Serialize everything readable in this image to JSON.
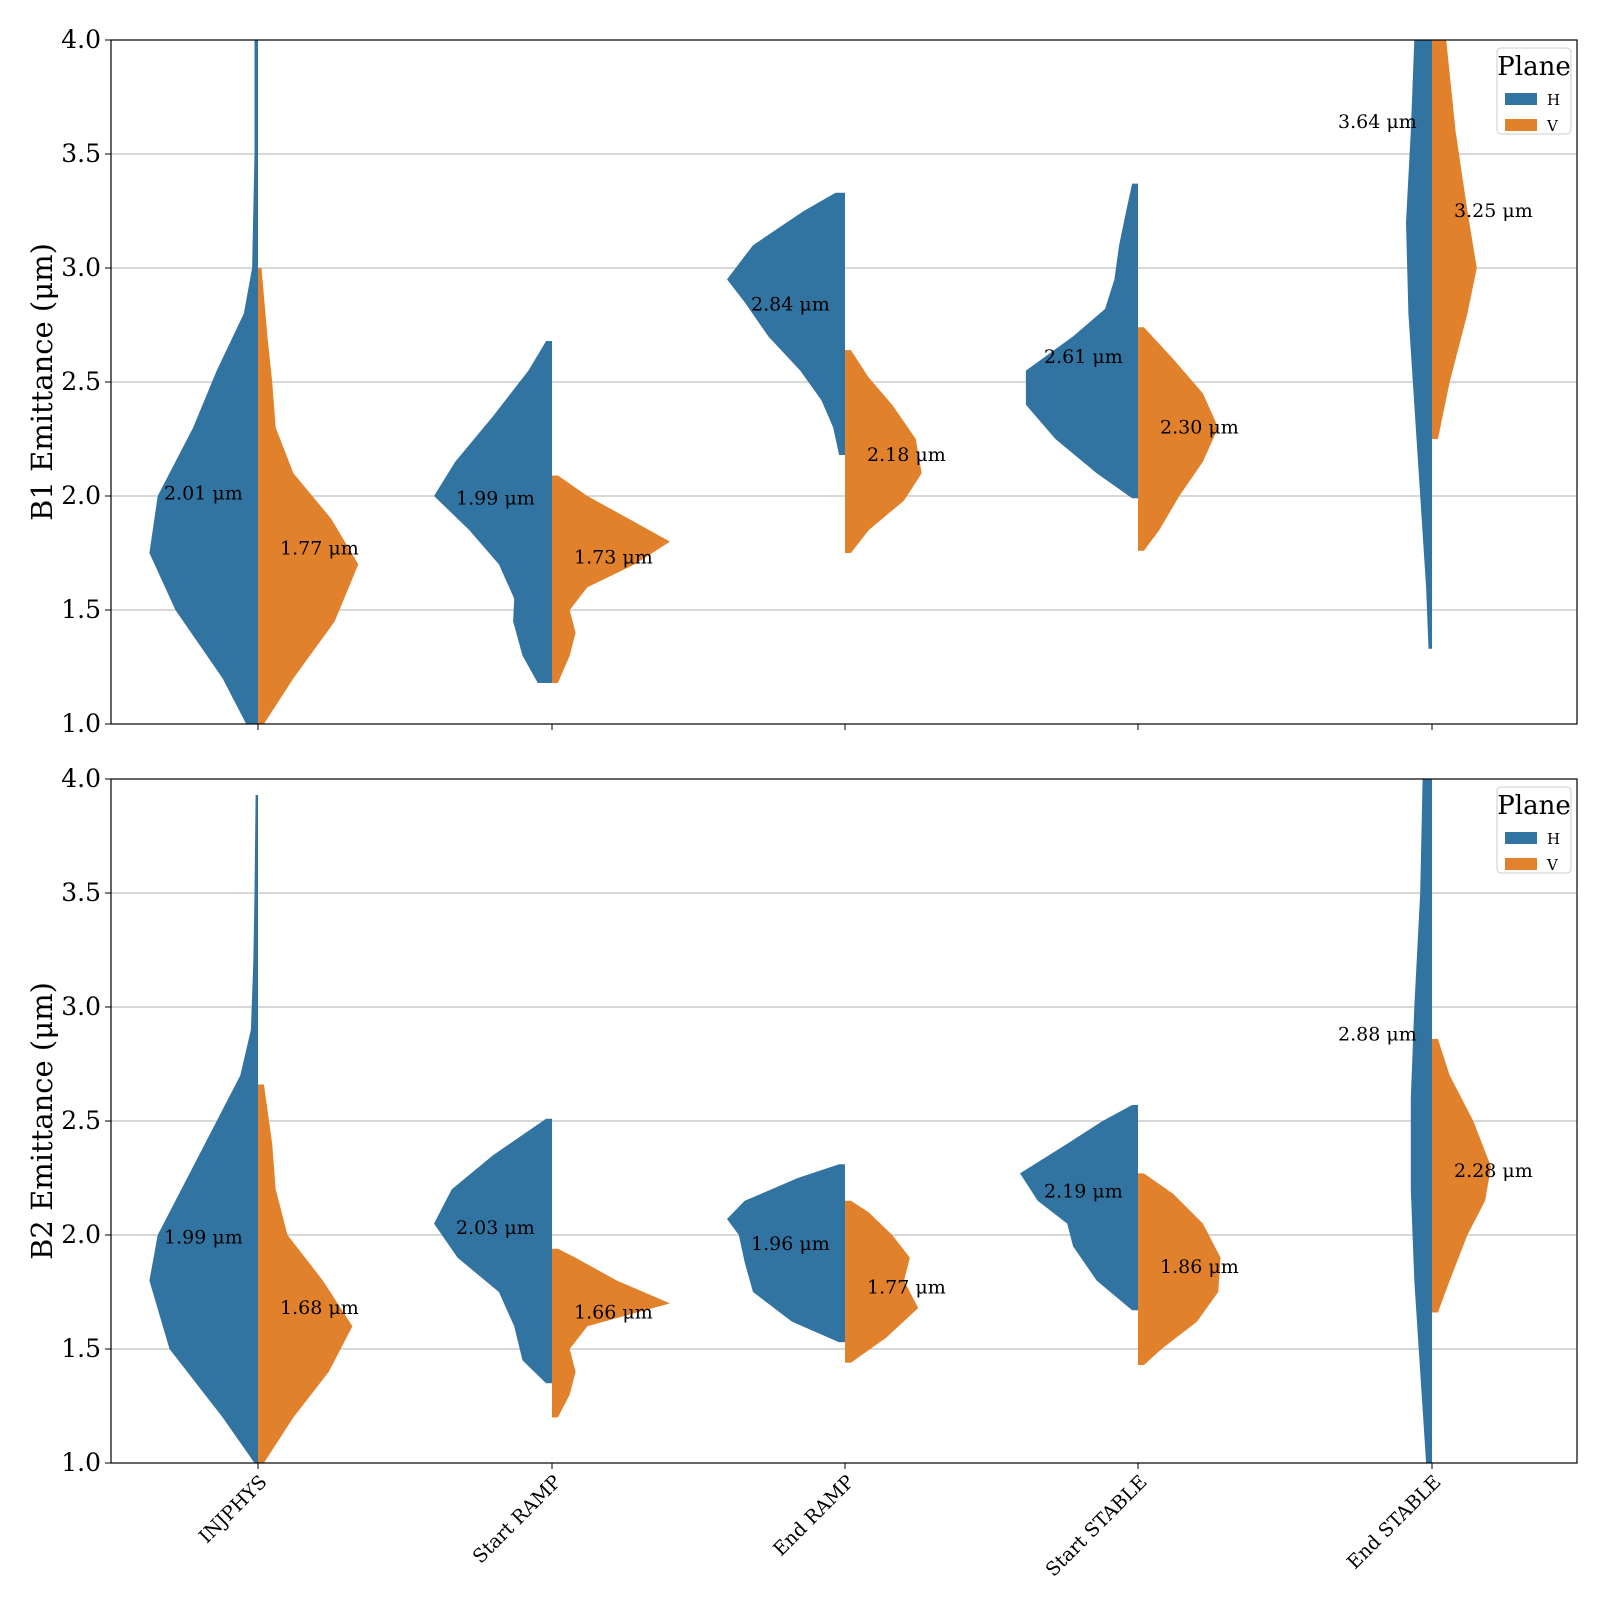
{
  "colors": {
    "H": "#3274a1",
    "V": "#e1812c",
    "grid": "#b0b0b0",
    "axis": "#000000"
  },
  "chart_data": [
    {
      "type": "violin",
      "split": true,
      "ylabel": "B1 Emittance (μm)",
      "ylim": [
        1.0,
        4.0
      ],
      "yticks": [
        "1.0",
        "1.5",
        "2.0",
        "2.5",
        "3.0",
        "3.5",
        "4.0"
      ],
      "grid": true,
      "legend": {
        "title": "Plane",
        "placement": "top-right",
        "entries": [
          "H",
          "V"
        ]
      },
      "categories": [
        "INJPHYS",
        "Start RAMP",
        "End RAMP",
        "Start STABLE",
        "End STABLE"
      ],
      "series": [
        {
          "name": "H",
          "medians": [
            2.01,
            1.99,
            2.84,
            2.61,
            3.64
          ],
          "labels": [
            "2.01 μm",
            "1.99 μm",
            "2.84 μm",
            "2.61 μm",
            "3.64 μm"
          ],
          "label_y": [
            2.01,
            1.99,
            2.84,
            2.61,
            3.64
          ],
          "ranges": [
            [
              1.0,
              4.0
            ],
            [
              1.18,
              2.68
            ],
            [
              2.18,
              3.33
            ],
            [
              1.99,
              3.37
            ],
            [
              1.33,
              4.0
            ]
          ],
          "density_profiles": [
            [
              [
                1.0,
                0.1
              ],
              [
                1.2,
                0.3
              ],
              [
                1.5,
                0.7
              ],
              [
                1.75,
                0.92
              ],
              [
                2.0,
                0.85
              ],
              [
                2.3,
                0.55
              ],
              [
                2.55,
                0.35
              ],
              [
                2.8,
                0.12
              ],
              [
                3.0,
                0.05
              ],
              [
                3.5,
                0.03
              ],
              [
                4.0,
                0.03
              ]
            ],
            [
              [
                1.18,
                0.12
              ],
              [
                1.3,
                0.25
              ],
              [
                1.45,
                0.33
              ],
              [
                1.55,
                0.32
              ],
              [
                1.7,
                0.45
              ],
              [
                1.85,
                0.7
              ],
              [
                2.0,
                1.0
              ],
              [
                2.15,
                0.82
              ],
              [
                2.35,
                0.5
              ],
              [
                2.55,
                0.2
              ],
              [
                2.68,
                0.05
              ]
            ],
            [
              [
                2.18,
                0.05
              ],
              [
                2.3,
                0.1
              ],
              [
                2.42,
                0.2
              ],
              [
                2.55,
                0.38
              ],
              [
                2.7,
                0.65
              ],
              [
                2.85,
                0.85
              ],
              [
                2.95,
                1.0
              ],
              [
                3.1,
                0.78
              ],
              [
                3.25,
                0.35
              ],
              [
                3.33,
                0.08
              ]
            ],
            [
              [
                1.99,
                0.05
              ],
              [
                2.1,
                0.35
              ],
              [
                2.25,
                0.7
              ],
              [
                2.4,
                0.95
              ],
              [
                2.55,
                0.95
              ],
              [
                2.7,
                0.55
              ],
              [
                2.82,
                0.28
              ],
              [
                2.95,
                0.2
              ],
              [
                3.1,
                0.16
              ],
              [
                3.25,
                0.1
              ],
              [
                3.37,
                0.05
              ]
            ],
            [
              [
                1.33,
                0.03
              ],
              [
                1.6,
                0.05
              ],
              [
                2.0,
                0.1
              ],
              [
                2.4,
                0.15
              ],
              [
                2.8,
                0.2
              ],
              [
                3.2,
                0.22
              ],
              [
                3.6,
                0.18
              ],
              [
                4.0,
                0.15
              ]
            ]
          ]
        },
        {
          "name": "V",
          "medians": [
            1.77,
            1.73,
            2.18,
            2.3,
            3.25
          ],
          "labels": [
            "1.77 μm",
            "1.73 μm",
            "2.18 μm",
            "2.30 μm",
            "3.25 μm"
          ],
          "label_y": [
            1.77,
            1.73,
            2.18,
            2.3,
            3.25
          ],
          "ranges": [
            [
              1.0,
              3.02
            ],
            [
              1.18,
              2.09
            ],
            [
              1.75,
              2.64
            ],
            [
              1.76,
              2.74
            ],
            [
              2.25,
              4.0
            ]
          ],
          "density_profiles": [
            [
              [
                1.0,
                0.05
              ],
              [
                1.2,
                0.3
              ],
              [
                1.45,
                0.65
              ],
              [
                1.7,
                0.85
              ],
              [
                1.9,
                0.62
              ],
              [
                2.1,
                0.3
              ],
              [
                2.3,
                0.15
              ],
              [
                2.5,
                0.12
              ],
              [
                2.7,
                0.08
              ],
              [
                3.0,
                0.03
              ]
            ],
            [
              [
                1.18,
                0.05
              ],
              [
                1.3,
                0.15
              ],
              [
                1.4,
                0.2
              ],
              [
                1.5,
                0.15
              ],
              [
                1.6,
                0.3
              ],
              [
                1.7,
                0.7
              ],
              [
                1.8,
                1.0
              ],
              [
                1.9,
                0.65
              ],
              [
                2.0,
                0.3
              ],
              [
                2.09,
                0.05
              ]
            ],
            [
              [
                1.75,
                0.05
              ],
              [
                1.85,
                0.2
              ],
              [
                1.98,
                0.5
              ],
              [
                2.1,
                0.65
              ],
              [
                2.25,
                0.6
              ],
              [
                2.4,
                0.4
              ],
              [
                2.52,
                0.2
              ],
              [
                2.64,
                0.05
              ]
            ],
            [
              [
                1.76,
                0.05
              ],
              [
                1.85,
                0.18
              ],
              [
                2.0,
                0.35
              ],
              [
                2.15,
                0.55
              ],
              [
                2.3,
                0.68
              ],
              [
                2.45,
                0.55
              ],
              [
                2.6,
                0.3
              ],
              [
                2.74,
                0.05
              ]
            ],
            [
              [
                2.25,
                0.05
              ],
              [
                2.5,
                0.15
              ],
              [
                2.8,
                0.3
              ],
              [
                3.0,
                0.38
              ],
              [
                3.25,
                0.3
              ],
              [
                3.6,
                0.2
              ],
              [
                4.0,
                0.12
              ]
            ]
          ]
        }
      ]
    },
    {
      "type": "violin",
      "split": true,
      "ylabel": "B2 Emittance (μm)",
      "ylim": [
        1.0,
        4.0
      ],
      "yticks": [
        "1.0",
        "1.5",
        "2.0",
        "2.5",
        "3.0",
        "3.5",
        "4.0"
      ],
      "grid": true,
      "legend": {
        "title": "Plane",
        "placement": "top-right",
        "entries": [
          "H",
          "V"
        ]
      },
      "categories": [
        "INJPHYS",
        "Start RAMP",
        "End RAMP",
        "Start STABLE",
        "End STABLE"
      ],
      "series": [
        {
          "name": "H",
          "medians": [
            1.99,
            2.03,
            1.96,
            2.19,
            2.88
          ],
          "labels": [
            "1.99 μm",
            "2.03 μm",
            "1.96 μm",
            "2.19 μm",
            "2.88 μm"
          ],
          "label_y": [
            1.99,
            2.03,
            1.96,
            2.19,
            2.88
          ],
          "ranges": [
            [
              1.0,
              3.93
            ],
            [
              1.35,
              2.51
            ],
            [
              1.53,
              2.31
            ],
            [
              1.67,
              2.57
            ],
            [
              1.0,
              4.0
            ]
          ],
          "density_profiles": [
            [
              [
                1.0,
                0.03
              ],
              [
                1.2,
                0.3
              ],
              [
                1.5,
                0.75
              ],
              [
                1.8,
                0.92
              ],
              [
                2.0,
                0.85
              ],
              [
                2.3,
                0.55
              ],
              [
                2.5,
                0.35
              ],
              [
                2.7,
                0.15
              ],
              [
                2.9,
                0.06
              ],
              [
                3.2,
                0.04
              ],
              [
                3.5,
                0.03
              ],
              [
                3.93,
                0.02
              ]
            ],
            [
              [
                1.35,
                0.05
              ],
              [
                1.45,
                0.25
              ],
              [
                1.6,
                0.32
              ],
              [
                1.75,
                0.45
              ],
              [
                1.9,
                0.8
              ],
              [
                2.05,
                1.0
              ],
              [
                2.2,
                0.85
              ],
              [
                2.35,
                0.5
              ],
              [
                2.51,
                0.05
              ]
            ],
            [
              [
                1.53,
                0.05
              ],
              [
                1.62,
                0.45
              ],
              [
                1.75,
                0.78
              ],
              [
                1.88,
                0.85
              ],
              [
                2.0,
                0.9
              ],
              [
                2.07,
                1.0
              ],
              [
                2.15,
                0.85
              ],
              [
                2.25,
                0.4
              ],
              [
                2.31,
                0.05
              ]
            ],
            [
              [
                1.67,
                0.05
              ],
              [
                1.8,
                0.35
              ],
              [
                1.95,
                0.55
              ],
              [
                2.05,
                0.6
              ],
              [
                2.15,
                0.85
              ],
              [
                2.27,
                1.0
              ],
              [
                2.4,
                0.6
              ],
              [
                2.5,
                0.3
              ],
              [
                2.57,
                0.05
              ]
            ],
            [
              [
                1.0,
                0.05
              ],
              [
                1.4,
                0.1
              ],
              [
                1.8,
                0.15
              ],
              [
                2.2,
                0.18
              ],
              [
                2.6,
                0.18
              ],
              [
                3.0,
                0.15
              ],
              [
                3.5,
                0.1
              ],
              [
                4.0,
                0.08
              ]
            ]
          ]
        },
        {
          "name": "V",
          "medians": [
            1.68,
            1.66,
            1.77,
            1.86,
            2.28
          ],
          "labels": [
            "1.68 μm",
            "1.66 μm",
            "1.77 μm",
            "1.86 μm",
            "2.28 μm"
          ],
          "label_y": [
            1.68,
            1.66,
            1.77,
            1.86,
            2.28
          ],
          "ranges": [
            [
              1.0,
              2.66
            ],
            [
              1.2,
              1.94
            ],
            [
              1.44,
              2.15
            ],
            [
              1.43,
              2.27
            ],
            [
              1.66,
              2.86
            ]
          ],
          "density_profiles": [
            [
              [
                1.0,
                0.05
              ],
              [
                1.2,
                0.3
              ],
              [
                1.4,
                0.6
              ],
              [
                1.6,
                0.8
              ],
              [
                1.8,
                0.55
              ],
              [
                2.0,
                0.25
              ],
              [
                2.2,
                0.15
              ],
              [
                2.4,
                0.12
              ],
              [
                2.66,
                0.05
              ]
            ],
            [
              [
                1.2,
                0.05
              ],
              [
                1.3,
                0.15
              ],
              [
                1.4,
                0.2
              ],
              [
                1.5,
                0.15
              ],
              [
                1.6,
                0.3
              ],
              [
                1.7,
                1.0
              ],
              [
                1.8,
                0.55
              ],
              [
                1.9,
                0.2
              ],
              [
                1.94,
                0.05
              ]
            ],
            [
              [
                1.44,
                0.05
              ],
              [
                1.55,
                0.35
              ],
              [
                1.68,
                0.62
              ],
              [
                1.8,
                0.5
              ],
              [
                1.9,
                0.55
              ],
              [
                2.0,
                0.4
              ],
              [
                2.1,
                0.2
              ],
              [
                2.15,
                0.05
              ]
            ],
            [
              [
                1.43,
                0.05
              ],
              [
                1.5,
                0.2
              ],
              [
                1.62,
                0.5
              ],
              [
                1.75,
                0.68
              ],
              [
                1.9,
                0.7
              ],
              [
                2.05,
                0.55
              ],
              [
                2.18,
                0.3
              ],
              [
                2.27,
                0.05
              ]
            ],
            [
              [
                1.66,
                0.05
              ],
              [
                1.8,
                0.15
              ],
              [
                2.0,
                0.3
              ],
              [
                2.15,
                0.45
              ],
              [
                2.3,
                0.5
              ],
              [
                2.5,
                0.35
              ],
              [
                2.7,
                0.15
              ],
              [
                2.86,
                0.05
              ]
            ]
          ]
        }
      ]
    }
  ]
}
